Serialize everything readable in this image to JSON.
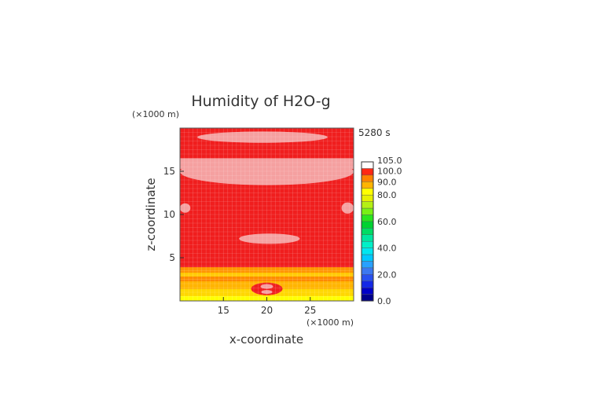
{
  "chart_data": {
    "type": "heatmap",
    "title": "Humidity of H2O-g",
    "time_label": "5280 s",
    "xlabel": "x-coordinate",
    "ylabel": "z-coordinate",
    "x_unit": "(×1000 m)",
    "y_unit": "(×1000 m)",
    "xlim": [
      10,
      30
    ],
    "ylim": [
      0,
      20
    ],
    "x_ticks": [
      15,
      20,
      25
    ],
    "y_ticks": [
      5,
      10,
      15
    ],
    "x_tick_labels": [
      "15",
      "20",
      "25"
    ],
    "y_tick_labels": [
      "5",
      "10",
      "15"
    ],
    "grid": true,
    "colorbar": {
      "min": 0,
      "max": 105,
      "labels": [
        {
          "value": 105,
          "text": "105.0"
        },
        {
          "value": 100,
          "text": "100.0"
        },
        {
          "value": 90,
          "text": "90.0"
        },
        {
          "value": 80,
          "text": "80.0"
        },
        {
          "value": 60,
          "text": "60.0"
        },
        {
          "value": 40,
          "text": "40.0"
        },
        {
          "value": 20,
          "text": "20.0"
        },
        {
          "value": 0,
          "text": "0.0"
        }
      ],
      "levels": [
        {
          "from": 0,
          "to": 5,
          "color": "#00008c"
        },
        {
          "from": 5,
          "to": 10,
          "color": "#0000c8"
        },
        {
          "from": 10,
          "to": 15,
          "color": "#1428e6"
        },
        {
          "from": 15,
          "to": 20,
          "color": "#2850f0"
        },
        {
          "from": 20,
          "to": 25,
          "color": "#3c78f0"
        },
        {
          "from": 25,
          "to": 30,
          "color": "#28a0ff"
        },
        {
          "from": 30,
          "to": 35,
          "color": "#00c8ff"
        },
        {
          "from": 35,
          "to": 40,
          "color": "#00e6f0"
        },
        {
          "from": 40,
          "to": 45,
          "color": "#00f0c8"
        },
        {
          "from": 45,
          "to": 50,
          "color": "#00e6a0"
        },
        {
          "from": 50,
          "to": 55,
          "color": "#00dc64"
        },
        {
          "from": 55,
          "to": 60,
          "color": "#00d232"
        },
        {
          "from": 60,
          "to": 65,
          "color": "#28e61e"
        },
        {
          "from": 65,
          "to": 70,
          "color": "#78f014"
        },
        {
          "from": 70,
          "to": 75,
          "color": "#b4f014"
        },
        {
          "from": 75,
          "to": 80,
          "color": "#e6f000"
        },
        {
          "from": 80,
          "to": 85,
          "color": "#ffff00"
        },
        {
          "from": 85,
          "to": 90,
          "color": "#ffb400"
        },
        {
          "from": 90,
          "to": 95,
          "color": "#ff8200"
        },
        {
          "from": 95,
          "to": 100,
          "color": "#ff2814"
        },
        {
          "from": 100,
          "to": 105,
          "color": "#ffffff"
        }
      ]
    },
    "field": {
      "background_value": 97,
      "background_color": "#f01e1e",
      "bands": [
        {
          "z_from": 0,
          "z_to": 0.6,
          "value": 82,
          "color": "#ffff00"
        },
        {
          "z_from": 0.6,
          "z_to": 1.4,
          "value": 86,
          "color": "#ffd700"
        },
        {
          "z_from": 1.4,
          "z_to": 2.3,
          "value": 88,
          "color": "#ffb400"
        },
        {
          "z_from": 2.3,
          "z_to": 2.8,
          "value": 91,
          "color": "#ff8c00"
        },
        {
          "z_from": 2.8,
          "z_to": 3.3,
          "value": 87,
          "color": "#ffc800"
        },
        {
          "z_from": 3.3,
          "z_to": 3.9,
          "value": 91,
          "color": "#ff9600"
        }
      ],
      "supersaturated_regions": [
        {
          "name": "upper-band",
          "x_from": 12,
          "x_to": 27,
          "z_from": 18.3,
          "z_to": 19.6,
          "value": 102
        },
        {
          "name": "mid-upper-band",
          "x_from": 10,
          "x_to": 30,
          "z_from": 13.4,
          "z_to": 16.5,
          "value": 102
        },
        {
          "name": "left-edge-patch",
          "x_from": 10,
          "x_to": 11.2,
          "z_from": 10.2,
          "z_to": 11.3,
          "value": 102
        },
        {
          "name": "right-edge-patch",
          "x_from": 28.6,
          "x_to": 30,
          "z_from": 10.1,
          "z_to": 11.4,
          "value": 102
        },
        {
          "name": "mid-band",
          "x_from": 16.8,
          "x_to": 23.8,
          "z_from": 6.6,
          "z_to": 7.8,
          "value": 102
        }
      ],
      "supersaturated_color": "#f5a0a0"
    }
  }
}
